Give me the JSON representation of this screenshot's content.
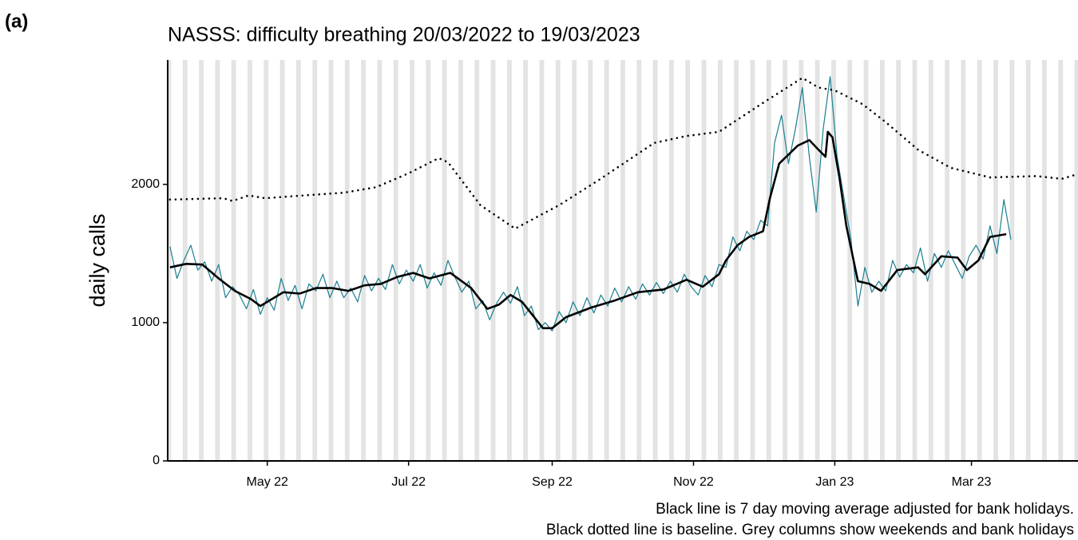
{
  "panel_label": "(a)",
  "chart_data": {
    "type": "line",
    "title": "NASSS: difficulty breathing 20/03/2022 to 19/03/2023",
    "y_label": "daily calls",
    "notes": [
      "Black line is 7 day moving average adjusted for bank holidays.",
      "Black dotted line is baseline. Grey columns show weekends and bank holidays"
    ],
    "xlim": [
      -1,
      392
    ],
    "xticks": [
      {
        "value": 42,
        "label": "May 22"
      },
      {
        "value": 103,
        "label": "Jul 22"
      },
      {
        "value": 165,
        "label": "Sep 22"
      },
      {
        "value": 226,
        "label": "Nov 22"
      },
      {
        "value": 287,
        "label": "Jan 23"
      },
      {
        "value": 346,
        "label": "Mar 23"
      }
    ],
    "ylim": [
      0,
      2900
    ],
    "yticks": [
      0,
      1000,
      2000
    ],
    "weekend_color": "#e3e3e3",
    "series": [
      {
        "color": "#1a7f90",
        "style": "solid",
        "width": 1.2,
        "x": [
          0,
          3,
          6,
          9,
          12,
          15,
          18,
          21,
          24,
          27,
          30,
          33,
          36,
          39,
          42,
          45,
          48,
          51,
          54,
          57,
          60,
          63,
          66,
          69,
          72,
          75,
          78,
          81,
          84,
          87,
          90,
          93,
          96,
          99,
          102,
          105,
          108,
          111,
          114,
          117,
          120,
          123,
          126,
          129,
          132,
          135,
          138,
          141,
          144,
          147,
          150,
          153,
          156,
          159,
          162,
          165,
          168,
          171,
          174,
          177,
          180,
          183,
          186,
          189,
          192,
          195,
          198,
          201,
          204,
          207,
          210,
          213,
          216,
          219,
          222,
          225,
          228,
          231,
          234,
          237,
          240,
          243,
          246,
          249,
          252,
          255,
          258,
          261,
          264,
          267,
          270,
          273,
          276,
          279,
          282,
          285,
          288,
          291,
          294,
          297,
          300,
          303,
          306,
          309,
          312,
          315,
          318,
          321,
          324,
          327,
          330,
          333,
          336,
          339,
          342,
          345,
          348,
          351,
          354,
          357,
          360,
          363
        ],
        "values": [
          1550,
          1320,
          1450,
          1560,
          1380,
          1440,
          1300,
          1420,
          1180,
          1260,
          1200,
          1100,
          1240,
          1060,
          1180,
          1090,
          1320,
          1160,
          1270,
          1100,
          1280,
          1230,
          1350,
          1180,
          1300,
          1180,
          1250,
          1150,
          1340,
          1230,
          1320,
          1240,
          1420,
          1280,
          1380,
          1300,
          1420,
          1250,
          1360,
          1270,
          1450,
          1330,
          1220,
          1300,
          1100,
          1160,
          1020,
          1140,
          1220,
          1140,
          1260,
          1050,
          1120,
          950,
          1000,
          940,
          1080,
          1000,
          1150,
          1050,
          1180,
          1070,
          1200,
          1120,
          1250,
          1150,
          1260,
          1170,
          1280,
          1200,
          1290,
          1210,
          1300,
          1220,
          1350,
          1260,
          1200,
          1340,
          1260,
          1420,
          1400,
          1620,
          1520,
          1660,
          1600,
          1740,
          1700,
          2300,
          2500,
          2150,
          2400,
          2700,
          2200,
          1800,
          2400,
          2780,
          2200,
          1900,
          1600,
          1120,
          1400,
          1220,
          1300,
          1230,
          1450,
          1330,
          1420,
          1360,
          1540,
          1300,
          1500,
          1400,
          1520,
          1420,
          1320,
          1480,
          1560,
          1460,
          1700,
          1500,
          1890,
          1600
        ]
      },
      {
        "color": "#000000",
        "style": "solid",
        "width": 2.6,
        "x": [
          0,
          7,
          14,
          21,
          28,
          35,
          39,
          42,
          49,
          56,
          63,
          70,
          77,
          84,
          91,
          98,
          105,
          112,
          121,
          130,
          137,
          142,
          147,
          152,
          161,
          165,
          171,
          182,
          192,
          202,
          213,
          223,
          230,
          237,
          240,
          245,
          250,
          256,
          259,
          263,
          271,
          276,
          280,
          283,
          284,
          286,
          289,
          292,
          297,
          302,
          307,
          314,
          323,
          326,
          333,
          340,
          344,
          349,
          354,
          361
        ],
        "values": [
          1400,
          1425,
          1420,
          1320,
          1230,
          1170,
          1120,
          1150,
          1220,
          1210,
          1250,
          1250,
          1230,
          1270,
          1280,
          1330,
          1360,
          1320,
          1360,
          1250,
          1100,
          1130,
          1200,
          1150,
          960,
          960,
          1040,
          1110,
          1160,
          1220,
          1240,
          1310,
          1260,
          1350,
          1450,
          1560,
          1620,
          1660,
          1900,
          2150,
          2280,
          2320,
          2250,
          2200,
          2380,
          2340,
          2050,
          1700,
          1300,
          1280,
          1230,
          1380,
          1400,
          1350,
          1480,
          1470,
          1380,
          1450,
          1620,
          1640
        ]
      },
      {
        "color": "#000000",
        "style": "dotted",
        "width": 2.6,
        "x": [
          0,
          23,
          27,
          34,
          41,
          58,
          75,
          89,
          103,
          116,
          120,
          134,
          149,
          168,
          185,
          209,
          223,
          237,
          257,
          273,
          280,
          287,
          299,
          309,
          323,
          337,
          354,
          374,
          385,
          391
        ],
        "values": [
          1890,
          1900,
          1880,
          1920,
          1900,
          1920,
          1940,
          1980,
          2080,
          2190,
          2160,
          1850,
          1680,
          1850,
          2030,
          2300,
          2350,
          2380,
          2600,
          2770,
          2700,
          2680,
          2580,
          2450,
          2250,
          2120,
          2050,
          2060,
          2040,
          2070
        ]
      }
    ]
  }
}
